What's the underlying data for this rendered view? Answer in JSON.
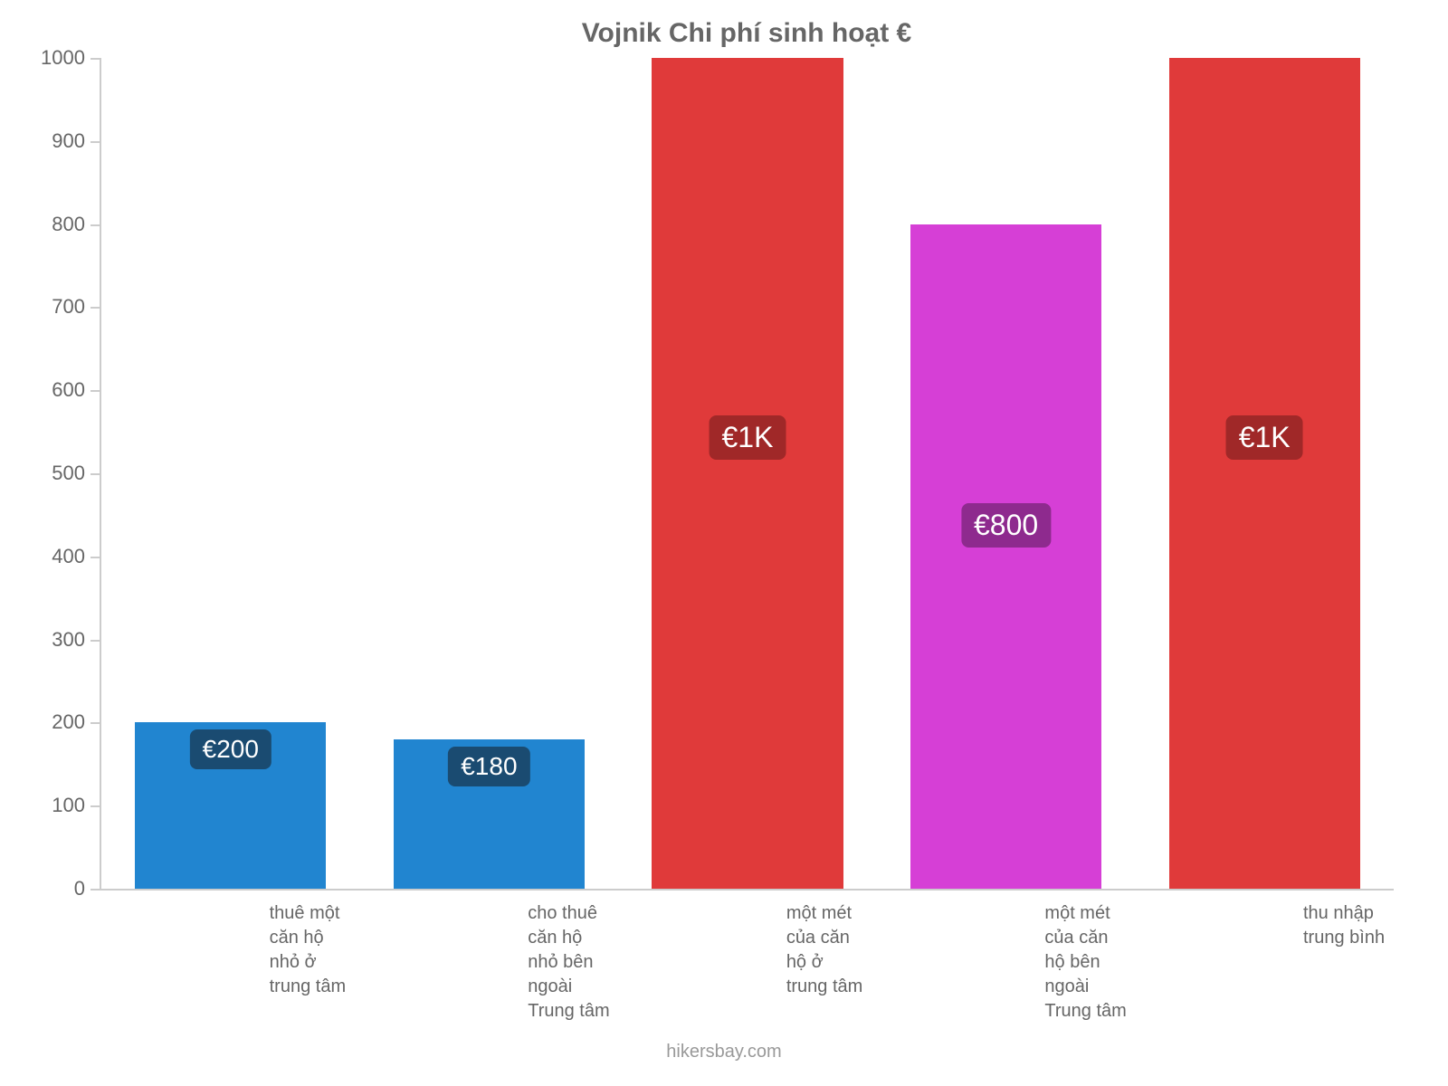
{
  "chart": {
    "type": "bar",
    "title": "Vojnik Chi phí sinh hoạt €",
    "title_fontsize": 30,
    "title_color": "#666666",
    "background_color": "#ffffff",
    "axis_color": "#cccccc",
    "tick_label_color": "#666666",
    "tick_label_fontsize": 22,
    "x_label_fontsize": 20,
    "ylim": [
      0,
      1000
    ],
    "ytick_step": 100,
    "yticks": [
      0,
      100,
      200,
      300,
      400,
      500,
      600,
      700,
      800,
      900,
      1000
    ],
    "bar_width_pct": 74,
    "bars": [
      {
        "label_line1": "thuê một căn hộ",
        "label_line2": "nhỏ ở trung tâm",
        "value": 200,
        "value_label": "€200",
        "bar_color": "#2185d0",
        "badge_color": "#1a4b71",
        "badge_fontsize": 28
      },
      {
        "label_line1": "cho thuê căn hộ",
        "label_line2": "nhỏ bên ngoài Trung tâm",
        "value": 180,
        "value_label": "€180",
        "bar_color": "#2185d0",
        "badge_color": "#1a4b71",
        "badge_fontsize": 28
      },
      {
        "label_line1": "một mét của căn",
        "label_line2": "hộ ở trung tâm",
        "value": 1000,
        "value_label": "€1K",
        "bar_color": "#e03a3a",
        "badge_color": "#a02828",
        "badge_fontsize": 32
      },
      {
        "label_line1": "một mét của căn",
        "label_line2": "hộ bên ngoài Trung tâm",
        "value": 800,
        "value_label": "€800",
        "bar_color": "#d63fd6",
        "badge_color": "#8e2a8e",
        "badge_fontsize": 32
      },
      {
        "label_line1": "thu nhập trung bình",
        "label_line2": "",
        "value": 1000,
        "value_label": "€1K",
        "bar_color": "#e03a3a",
        "badge_color": "#a02828",
        "badge_fontsize": 32
      }
    ],
    "attribution": "hikersbay.com",
    "attribution_fontsize": 20,
    "attribution_color": "#999999"
  }
}
